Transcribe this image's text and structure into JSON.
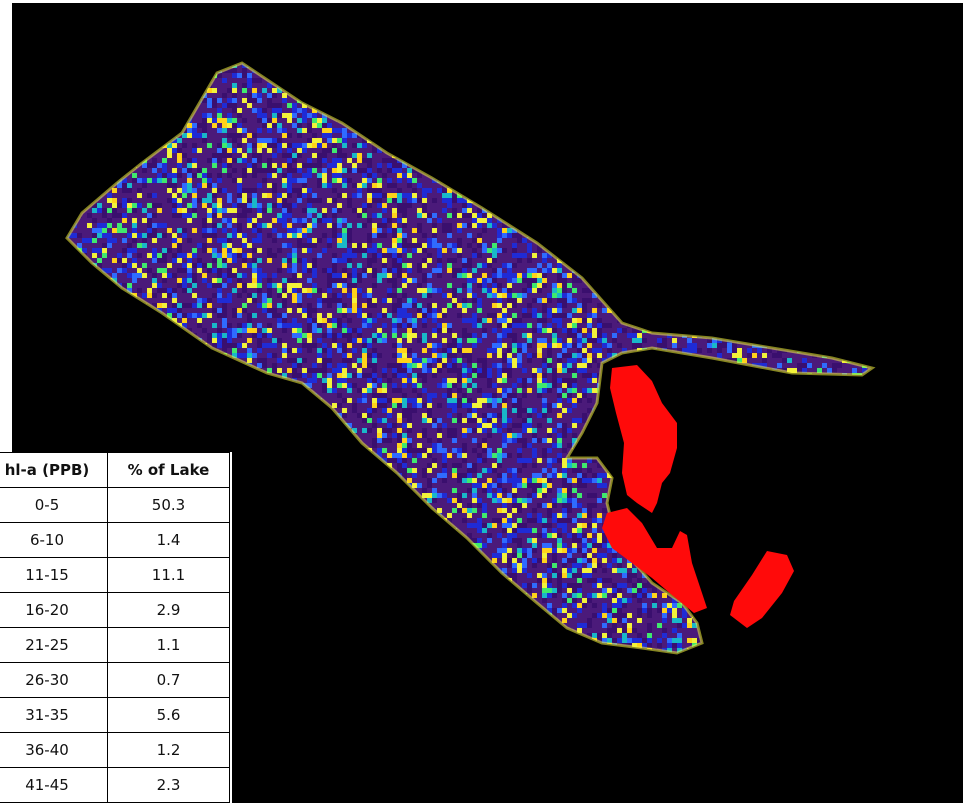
{
  "legend": {
    "headers": [
      "hl-a (PPB)",
      "% of Lake"
    ],
    "rows": [
      {
        "range": "0-5",
        "pct": "50.3"
      },
      {
        "range": "6-10",
        "pct": "1.4"
      },
      {
        "range": "11-15",
        "pct": "11.1"
      },
      {
        "range": "16-20",
        "pct": "2.9"
      },
      {
        "range": "21-25",
        "pct": "1.1"
      },
      {
        "range": "26-30",
        "pct": "0.7"
      },
      {
        "range": "31-35",
        "pct": "5.6"
      },
      {
        "range": "36-40",
        "pct": "1.2"
      },
      {
        "range": "41-45",
        "pct": "2.3"
      }
    ]
  },
  "colors": {
    "background": "#000000",
    "lake_base": "#4b1a7a",
    "speckle": [
      "#3a0f6e",
      "#1f2bd6",
      "#2f6bff",
      "#19b7c9",
      "#3fe86e",
      "#f2f23a",
      "#ffd21a"
    ],
    "marked_area": "#ff0a0a"
  }
}
